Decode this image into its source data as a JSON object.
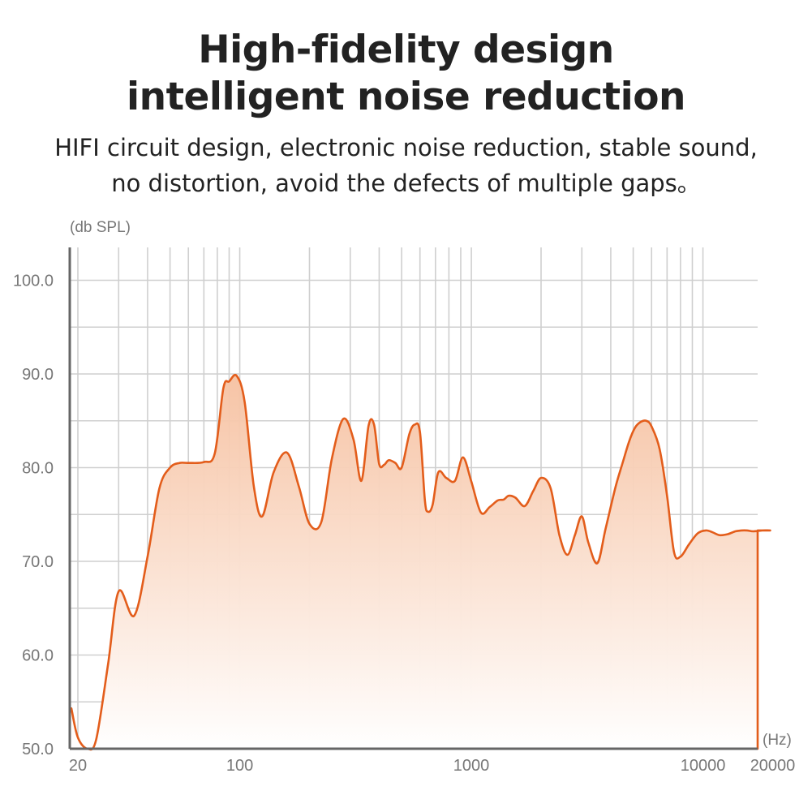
{
  "header": {
    "title_line1": "High-fidelity design",
    "title_line2": "intelligent noise reduction",
    "subtitle_line1": "HIFI circuit design, electronic noise reduction, stable sound,",
    "subtitle_line2": "no distortion, avoid the defects of multiple gaps。"
  },
  "chart_data": {
    "type": "area",
    "title": "High-fidelity design intelligent noise reduction",
    "ylabel": "(db SPL)",
    "xlabel": "(Hz)",
    "x_scale": "log",
    "xlim": [
      18,
      21000
    ],
    "ylim": [
      50,
      105
    ],
    "grid": true,
    "line_color": "#e35d1b",
    "fill_top_color": "#f6c1a1",
    "fill_bottom_color": "#ffffff",
    "y_ticks": [
      50,
      60,
      70,
      80,
      90,
      100
    ],
    "y_tick_labels": [
      "50.0",
      "60.0",
      "70.0",
      "80.0",
      "90.0",
      "100.0"
    ],
    "x_ticks": [
      20,
      100,
      1000,
      10000,
      20000
    ],
    "x_tick_labels": [
      "20",
      "100",
      "1000",
      "10000",
      "20000"
    ],
    "series": [
      {
        "x": [
          18,
          20,
          22,
          24,
          27,
          30,
          35,
          40,
          45,
          50,
          55,
          60,
          70,
          78,
          85,
          90,
          97,
          105,
          115,
          125,
          140,
          160,
          180,
          200,
          225,
          250,
          280,
          310,
          335,
          360,
          380,
          400,
          420,
          440,
          470,
          500,
          540,
          570,
          600,
          630,
          650,
          680,
          720,
          780,
          850,
          920,
          1000,
          1100,
          1200,
          1300,
          1380,
          1450,
          1550,
          1700,
          1850,
          2000,
          2200,
          2400,
          2600,
          2800,
          3000,
          3200,
          3500,
          3800,
          4200,
          4500,
          4800,
          5100,
          5400,
          5700,
          6000,
          6500,
          7000,
          7500,
          8000,
          8700,
          9500,
          10300,
          11000,
          11800,
          12800,
          13800,
          14700,
          15500,
          16500,
          18000,
          19500,
          20000
        ],
        "values": [
          54.3,
          51.2,
          50,
          51,
          59,
          66.8,
          64.2,
          70.5,
          77.8,
          80,
          80.5,
          80.5,
          80.6,
          81.5,
          88.5,
          89.2,
          89.8,
          87,
          78,
          74.8,
          79.5,
          81.6,
          78,
          74,
          74.2,
          81,
          85.2,
          83,
          78.6,
          84.5,
          84.6,
          80.4,
          80.3,
          80.8,
          80.5,
          80,
          83.6,
          84.6,
          83.8,
          76.5,
          75.3,
          76,
          79.5,
          78.9,
          78.6,
          81.1,
          78.5,
          75.2,
          75.8,
          76.5,
          76.6,
          77,
          76.8,
          75.9,
          77.5,
          78.9,
          77.8,
          72.8,
          70.7,
          72.8,
          74.8,
          72,
          69.8,
          73.5,
          78,
          80.5,
          82.8,
          84.3,
          84.9,
          85,
          84.4,
          82,
          77,
          71,
          70.5,
          71.8,
          73,
          73.3,
          73.1,
          72.8,
          72.9,
          73.2,
          73.3,
          73.3,
          73.2,
          73.3,
          73.3,
          73.3
        ]
      }
    ]
  }
}
